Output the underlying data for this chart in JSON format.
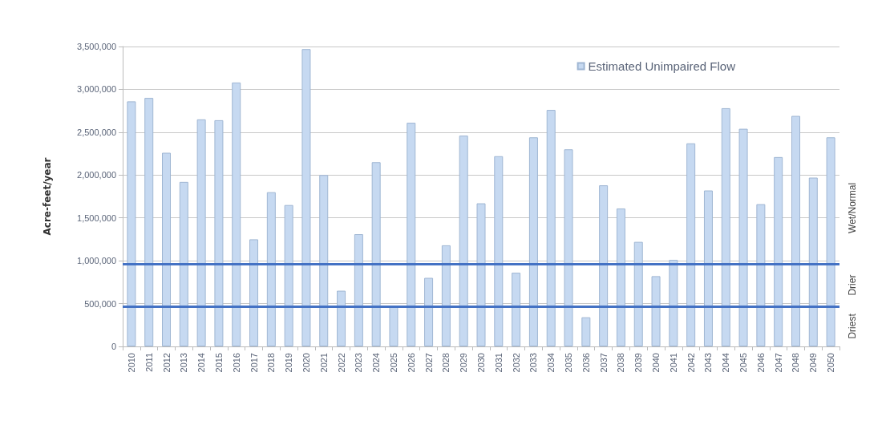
{
  "chart_data": {
    "type": "bar",
    "ylabel": "Acre-feet/year",
    "categories": [
      "2010",
      "2011",
      "2012",
      "2013",
      "2014",
      "2015",
      "2016",
      "2017",
      "2018",
      "2019",
      "2020",
      "2021",
      "2022",
      "2023",
      "2024",
      "2025",
      "2026",
      "2027",
      "2028",
      "2029",
      "2030",
      "2031",
      "2032",
      "2033",
      "2034",
      "2035",
      "2036",
      "2037",
      "2038",
      "2039",
      "2040",
      "2041",
      "2042",
      "2043",
      "2044",
      "2045",
      "2046",
      "2047",
      "2048",
      "2049",
      "2050"
    ],
    "series": [
      {
        "name": "Estimated Unimpaired Flow",
        "color": "#c6d9f1",
        "values": [
          2860000,
          2900000,
          2260000,
          1920000,
          2650000,
          2640000,
          3080000,
          1250000,
          1800000,
          1650000,
          3470000,
          2000000,
          650000,
          1310000,
          2150000,
          470000,
          2610000,
          800000,
          1180000,
          2460000,
          1670000,
          2220000,
          860000,
          2440000,
          2760000,
          2300000,
          340000,
          1880000,
          1610000,
          1220000,
          820000,
          1010000,
          2370000,
          1820000,
          2780000,
          2540000,
          1660000,
          2210000,
          2690000,
          1970000,
          2440000
        ]
      }
    ],
    "ylim": [
      0,
      3500000
    ],
    "yticks": [
      0,
      {
        "value": 500000,
        "label": "500,000"
      },
      {
        "value": 1000000,
        "label": "1,000,000"
      },
      {
        "value": 1500000,
        "label": "1,500,000"
      },
      {
        "value": 2000000,
        "label": "2,000,000"
      },
      {
        "value": 2500000,
        "label": "2,500,000"
      },
      {
        "value": 3000000,
        "label": "3,000,000"
      },
      {
        "value": 3500000,
        "label": "3,500,000"
      }
    ],
    "grid": "y",
    "legend": "top right",
    "ref_lines": [
      {
        "axis": "y",
        "value": 960000,
        "color": "#4472c4"
      },
      {
        "axis": "y",
        "value": 470000,
        "color": "#4472c4"
      }
    ],
    "annotations": [
      "Wet/Normal",
      "Drier",
      "Driest"
    ]
  }
}
